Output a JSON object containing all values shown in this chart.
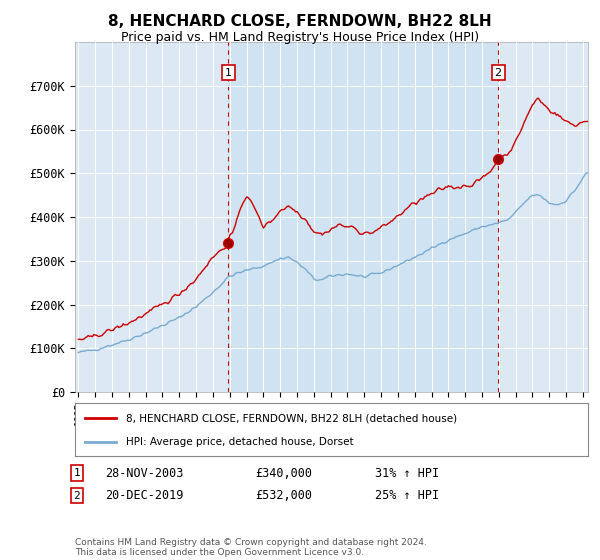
{
  "title": "8, HENCHARD CLOSE, FERNDOWN, BH22 8LH",
  "subtitle": "Price paid vs. HM Land Registry's House Price Index (HPI)",
  "legend_label_red": "8, HENCHARD CLOSE, FERNDOWN, BH22 8LH (detached house)",
  "legend_label_blue": "HPI: Average price, detached house, Dorset",
  "annotation1_label": "1",
  "annotation1_date": "28-NOV-2003",
  "annotation1_price": "£340,000",
  "annotation1_hpi": "31% ↑ HPI",
  "annotation2_label": "2",
  "annotation2_date": "20-DEC-2019",
  "annotation2_price": "£532,000",
  "annotation2_hpi": "25% ↑ HPI",
  "footer": "Contains HM Land Registry data © Crown copyright and database right 2024.\nThis data is licensed under the Open Government Licence v3.0.",
  "ylim": [
    0,
    800000
  ],
  "yticks": [
    0,
    100000,
    200000,
    300000,
    400000,
    500000,
    600000,
    700000
  ],
  "ytick_labels": [
    "£0",
    "£100K",
    "£200K",
    "£300K",
    "£400K",
    "£500K",
    "£600K",
    "£700K"
  ],
  "red_color": "#cc0000",
  "blue_color": "#7aabcf",
  "shade_color": "#d0e4f0",
  "background_color": "#ffffff",
  "plot_bg_color": "#dce9f5",
  "grid_color": "#ffffff",
  "sale1_x": 2003.92,
  "sale1_y": 340000,
  "sale2_x": 2019.96,
  "sale2_y": 532000,
  "xmin": 1995.0,
  "xmax": 2025.3
}
